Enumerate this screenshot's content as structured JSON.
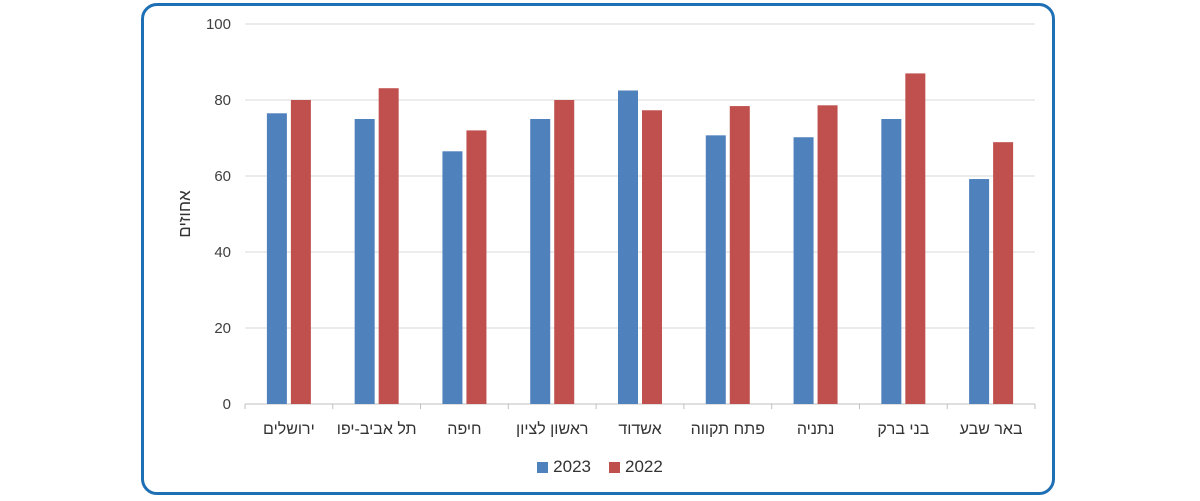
{
  "chart_data": {
    "type": "bar",
    "direction": "rtl",
    "categories": [
      "ירושלים",
      "תל אביב-יפו",
      "חיפה",
      "ראשון לציון",
      "אשדוד",
      "פתח תקווה",
      "נתניה",
      "בני ברק",
      "באר שבע"
    ],
    "series": [
      {
        "name": "2023",
        "color": "#4f81bd",
        "values": [
          76.5,
          75,
          66.5,
          75,
          82.5,
          70.7,
          70.2,
          75,
          59.2
        ]
      },
      {
        "name": "2022",
        "color": "#c0504d",
        "values": [
          80,
          83.1,
          72,
          80,
          77.3,
          78.4,
          78.6,
          87,
          68.9
        ]
      }
    ],
    "ylabel": "אחוזים",
    "ylim": [
      0,
      100
    ],
    "yticks": [
      "0",
      "20",
      "40",
      "60",
      "80",
      "100"
    ],
    "grid": true,
    "legend_position": "bottom"
  }
}
